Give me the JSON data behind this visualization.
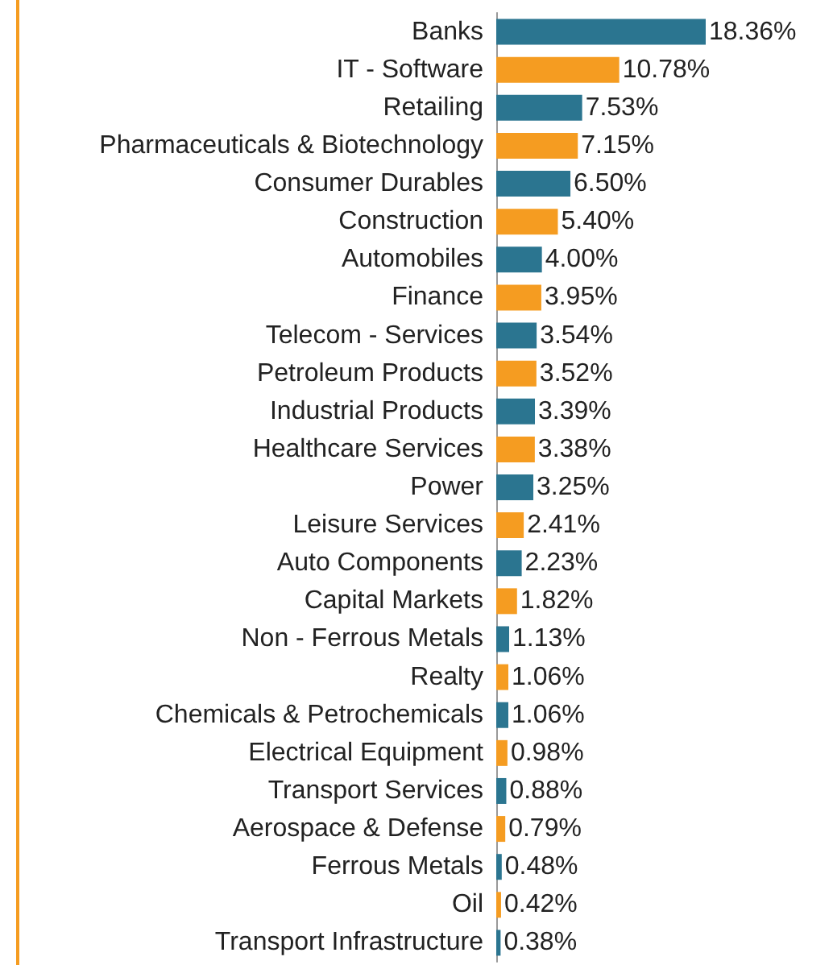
{
  "chart_data": {
    "type": "bar",
    "orientation": "horizontal",
    "tick_labels": "y",
    "categories": [
      "Banks",
      "IT - Software",
      "Retailing",
      "Pharmaceuticals & Biotechnology",
      "Consumer Durables",
      "Construction",
      "Automobiles",
      "Finance",
      "Telecom - Services",
      "Petroleum Products",
      "Industrial Products",
      "Healthcare Services",
      "Power",
      "Leisure Services",
      "Auto Components",
      "Capital Markets",
      "Non - Ferrous Metals",
      "Realty",
      "Chemicals & Petrochemicals",
      "Electrical Equipment",
      "Transport Services",
      "Aerospace & Defense",
      "Ferrous Metals",
      "Oil",
      "Transport Infrastructure"
    ],
    "values": [
      18.36,
      10.78,
      7.53,
      7.15,
      6.5,
      5.4,
      4.0,
      3.95,
      3.54,
      3.52,
      3.39,
      3.38,
      3.25,
      2.41,
      2.23,
      1.82,
      1.13,
      1.06,
      1.06,
      0.98,
      0.88,
      0.79,
      0.48,
      0.42,
      0.38
    ],
    "value_labels": [
      "18.36%",
      "10.78%",
      "7.53%",
      "7.15%",
      "6.50%",
      "5.40%",
      "4.00%",
      "3.95%",
      "3.54%",
      "3.52%",
      "3.39%",
      "3.38%",
      "3.25%",
      "2.41%",
      "2.23%",
      "1.82%",
      "1.13%",
      "1.06%",
      "1.06%",
      "0.98%",
      "0.88%",
      "0.79%",
      "0.48%",
      "0.42%",
      "0.38%"
    ],
    "colors": [
      "#2b7590",
      "#f59c21",
      "#2b7590",
      "#f59c21",
      "#2b7590",
      "#f59c21",
      "#2b7590",
      "#f59c21",
      "#2b7590",
      "#f59c21",
      "#2b7590",
      "#f59c21",
      "#2b7590",
      "#f59c21",
      "#2b7590",
      "#f59c21",
      "#2b7590",
      "#f59c21",
      "#2b7590",
      "#f59c21",
      "#2b7590",
      "#f59c21",
      "#2b7590",
      "#f59c21",
      "#2b7590"
    ]
  }
}
